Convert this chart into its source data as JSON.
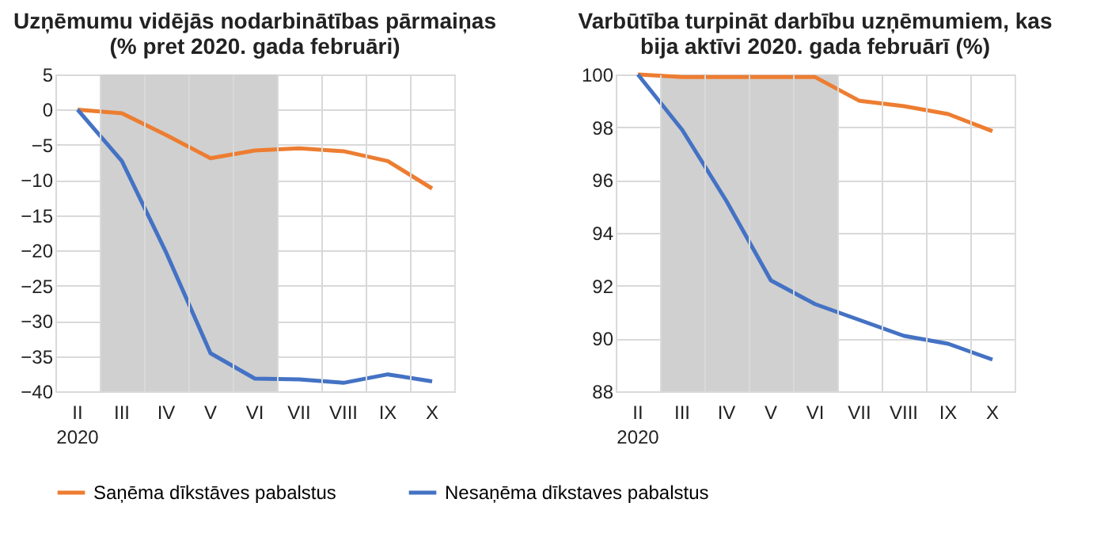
{
  "chart_data": [
    {
      "type": "line",
      "title": "Uzņēmumu vidējās nodarbinātības pārmaiņas (% pret 2020. gada februāri)",
      "categories": [
        "II",
        "III",
        "IV",
        "V",
        "VI",
        "VII",
        "VIII",
        "IX",
        "X"
      ],
      "series": [
        {
          "name": "Saņēma dīkstāves pabalstus",
          "color": "#ed7d31",
          "values": [
            0,
            -0.5,
            -3.6,
            -6.9,
            -5.8,
            -5.5,
            -5.9,
            -7.3,
            -11.2
          ]
        },
        {
          "name": "Nesaņēma dīkstaves pabalstus",
          "color": "#4472c4",
          "values": [
            0,
            -7.3,
            -20.3,
            -34.6,
            -38.2,
            -38.3,
            -38.8,
            -37.6,
            -38.6
          ]
        }
      ],
      "ylim": [
        -40,
        5
      ],
      "yticks": [
        -40,
        -35,
        -30,
        -25,
        -20,
        -15,
        -10,
        -5,
        0,
        5
      ],
      "bands": [
        {
          "axis": "x",
          "from": "III",
          "to": "VI",
          "color": "#d0d0d0"
        }
      ],
      "annotations": [
        "2020"
      ],
      "grid": true,
      "legend": "bottom",
      "marker": "none",
      "line_style": "solid"
    },
    {
      "type": "line",
      "title": "Varbūtība turpināt darbību uzņēmumiem, kas bija aktīvi 2020. gada februārī (%)",
      "categories": [
        "II",
        "III",
        "IV",
        "V",
        "VI",
        "VII",
        "VIII",
        "IX",
        "X"
      ],
      "series": [
        {
          "name": "Saņēma dīkstāves pabalstus",
          "color": "#ed7d31",
          "values": [
            100,
            99.9,
            99.9,
            99.9,
            99.9,
            99.0,
            98.8,
            98.5,
            97.85
          ]
        },
        {
          "name": "Nesaņēma dīkstaves pabalstus",
          "color": "#4472c4",
          "values": [
            100,
            97.9,
            95.2,
            92.2,
            91.3,
            90.7,
            90.1,
            89.8,
            89.2
          ]
        }
      ],
      "ylim": [
        88,
        100
      ],
      "yticks": [
        88,
        90,
        92,
        94,
        96,
        98,
        100
      ],
      "bands": [
        {
          "axis": "x",
          "from": "III",
          "to": "VI",
          "color": "#d0d0d0"
        }
      ],
      "annotations": [
        "2020"
      ],
      "grid": true,
      "marker": "none",
      "line_style": "solid"
    }
  ]
}
